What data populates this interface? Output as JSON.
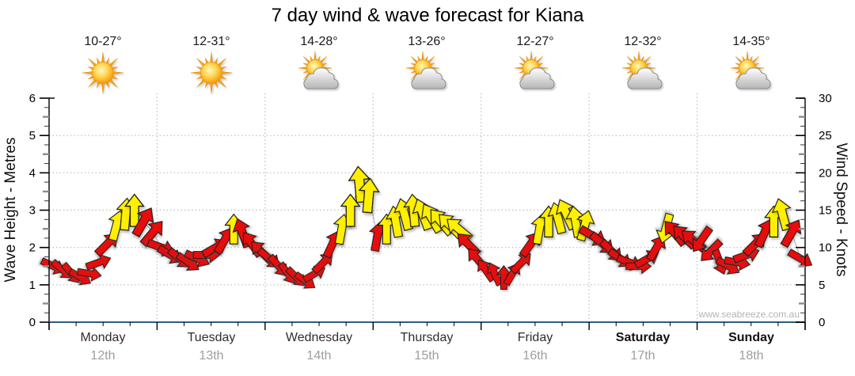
{
  "title": "7 day wind & wave forecast for Kiana",
  "watermark": "www.seabreeze.com.au",
  "axes": {
    "left_label": "Wave Height - Metres",
    "right_label": "Wind Speed - Knots",
    "left_ticks": [
      0,
      1,
      2,
      3,
      4,
      5,
      6
    ],
    "right_ticks": [
      0,
      5,
      10,
      15,
      20,
      25,
      30
    ],
    "left_range_metres": [
      0,
      6
    ],
    "right_range_knots": [
      0,
      30
    ],
    "grid": "dotted horizontal at 5,10,15,20,25 knots; dotted vertical at day boundaries"
  },
  "days": [
    {
      "name": "Monday",
      "date": "12th",
      "temp": "10-27°",
      "icon": "sunny",
      "bold": false
    },
    {
      "name": "Tuesday",
      "date": "13th",
      "temp": "12-31°",
      "icon": "sunny",
      "bold": false
    },
    {
      "name": "Wednesday",
      "date": "14th",
      "temp": "14-28°",
      "icon": "sun-cloud",
      "bold": false
    },
    {
      "name": "Thursday",
      "date": "15th",
      "temp": "13-26°",
      "icon": "sun-cloud",
      "bold": false
    },
    {
      "name": "Friday",
      "date": "16th",
      "temp": "12-27°",
      "icon": "sun-cloud",
      "bold": false
    },
    {
      "name": "Saturday",
      "date": "17th",
      "temp": "12-32°",
      "icon": "sun-cloud",
      "bold": true
    },
    {
      "name": "Sunday",
      "date": "18th",
      "temp": "14-35°",
      "icon": "sun-cloud",
      "bold": true
    }
  ],
  "chart_data": {
    "type": "wind-arrow-series",
    "title": "7 day wind & wave forecast for Kiana",
    "x": "time, 7 days (2-hourly samples as day fractions)",
    "ylabel_left": "Wave Height - Metres",
    "ylabel_right": "Wind Speed - Knots",
    "ylim_knots": [
      0,
      30
    ],
    "arrow_value_axis": "right (knots)",
    "arrow_color_legend": {
      "y": "onshore/peak sea-breeze wind (yellow)",
      "r": "other wind (red)"
    },
    "fractions": [
      0.04,
      0.125,
      0.21,
      0.29,
      0.375,
      0.46,
      0.54,
      0.625,
      0.71,
      0.79,
      0.875,
      0.96
    ],
    "series": [
      {
        "name": "Monday",
        "speeds_kn": [
          7.5,
          7,
          6.5,
          6,
          6.5,
          8,
          10.5,
          13,
          14.5,
          15,
          13.5,
          12
        ],
        "directions_deg": [
          115,
          130,
          140,
          120,
          100,
          70,
          45,
          15,
          5,
          0,
          30,
          40
        ],
        "colors": "rrrrrrryyyrr"
      },
      {
        "name": "Tuesday",
        "speeds_kn": [
          10,
          9,
          8.5,
          8,
          8.5,
          9,
          10,
          11,
          12.5,
          12,
          10.5,
          9.5
        ],
        "directions_deg": [
          110,
          120,
          130,
          125,
          115,
          90,
          60,
          30,
          0,
          -20,
          -35,
          -45
        ],
        "colors": "rrrrrrrryrrr"
      },
      {
        "name": "Wednesday",
        "speeds_kn": [
          8.5,
          7.5,
          6.5,
          6,
          5.5,
          6.5,
          8,
          10.5,
          12.5,
          15,
          18.5,
          17
        ],
        "directions_deg": [
          130,
          140,
          145,
          135,
          125,
          60,
          45,
          25,
          10,
          0,
          -5,
          5
        ],
        "colors": "rrrrrrrryyyy"
      },
      {
        "name": "Thursday",
        "speeds_kn": [
          11.5,
          12.5,
          13.5,
          14.5,
          15,
          14.5,
          14,
          13.5,
          13,
          12.5,
          10.5,
          8.5
        ],
        "directions_deg": [
          10,
          0,
          -10,
          -15,
          -5,
          -20,
          -30,
          -40,
          -45,
          -50,
          -45,
          -40
        ],
        "colors": "ryyyyyyyyyrr"
      },
      {
        "name": "Friday",
        "speeds_kn": [
          7,
          6.5,
          6,
          6.5,
          8,
          10.5,
          12.5,
          13.5,
          14,
          14.5,
          13.5,
          13
        ],
        "directions_deg": [
          -35,
          -25,
          0,
          30,
          45,
          35,
          10,
          0,
          -15,
          -25,
          -10,
          15
        ],
        "colors": "rrrrrryyyyyy"
      },
      {
        "name": "Saturday",
        "speeds_kn": [
          11.5,
          10.5,
          9.5,
          8.5,
          8,
          7.5,
          8.5,
          10,
          12.5,
          12,
          11.5,
          11
        ],
        "directions_deg": [
          120,
          130,
          135,
          125,
          110,
          90,
          60,
          30,
          195,
          -40,
          -45,
          -50
        ],
        "colors": "rrrrrrrryrrr"
      },
      {
        "name": "Sunday",
        "speeds_kn": [
          11,
          9.5,
          8,
          7.5,
          8,
          9,
          10.5,
          12,
          13.5,
          14.5,
          12,
          8.5
        ],
        "directions_deg": [
          215,
          225,
          160,
          120,
          100,
          70,
          45,
          25,
          0,
          -15,
          30,
          120
        ],
        "colors": "rrrrrrrryyrr"
      }
    ]
  },
  "colors": {
    "arrow_red": "#e60d0d",
    "arrow_yellow": "#fff000",
    "arrow_outline": "#161616",
    "x_axis_line": "#2d5f7c",
    "y_axis_line": "#000000",
    "gridline": "#bdbdbd",
    "connector_line": "#a8a8a8"
  }
}
